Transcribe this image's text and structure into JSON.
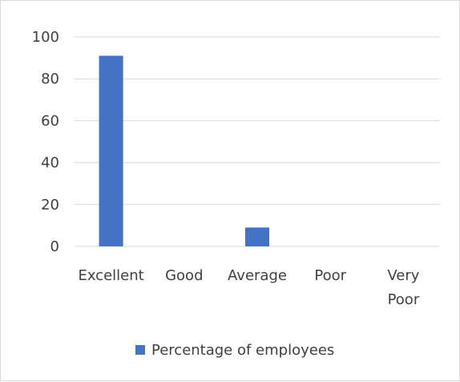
{
  "chart_data": {
    "type": "bar",
    "title": "",
    "xlabel": "",
    "ylabel": "",
    "categories": [
      "Excellent",
      "Good",
      "Average",
      "Poor",
      "Very Poor"
    ],
    "series": [
      {
        "name": "Percentage of employees",
        "values": [
          91,
          0,
          9,
          0,
          0
        ],
        "color": "#4472c4"
      }
    ],
    "ylim": [
      0,
      100
    ],
    "yticks": [
      0,
      20,
      40,
      60,
      80,
      100
    ],
    "grid": true,
    "legend_position": "bottom",
    "gridline_color": "#d9d9d9",
    "text_color": "#404040"
  }
}
